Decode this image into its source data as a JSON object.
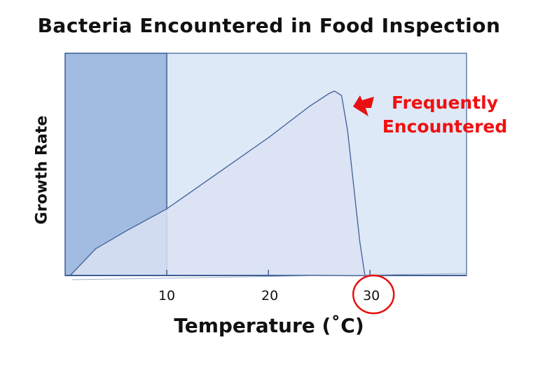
{
  "chart_data": {
    "type": "area",
    "title": "Bacteria Encountered in Food Inspection",
    "xlabel": "Temperature (˚C)",
    "ylabel": "Growth Rate",
    "xlim": [
      0,
      39.5
    ],
    "ylim": [
      0,
      1
    ],
    "xticks": [
      10,
      20,
      30
    ],
    "xtick_labels": [
      "10",
      "20",
      "30"
    ],
    "grid": false,
    "series": [
      {
        "x": [
          0.5,
          3,
          6,
          10,
          15,
          20,
          24,
          26,
          26.5,
          27.2,
          27.8,
          28.4,
          29,
          29.5
        ],
        "y": [
          0,
          0.12,
          0.2,
          0.3,
          0.46,
          0.62,
          0.76,
          0.82,
          0.83,
          0.81,
          0.65,
          0.4,
          0.15,
          0
        ]
      }
    ],
    "shaded_region": {
      "x": [
        0,
        10
      ]
    },
    "highlighted_tick": "30",
    "annotation": {
      "line1": "Frequently",
      "line2": "Encountered",
      "at_x": 27.5
    },
    "colors": {
      "plot_bg": "#dde9f6",
      "shaded": "#a2bbe1",
      "area": "#dae2f3",
      "line": "#3f5f95",
      "highlight": "#e81010"
    }
  }
}
